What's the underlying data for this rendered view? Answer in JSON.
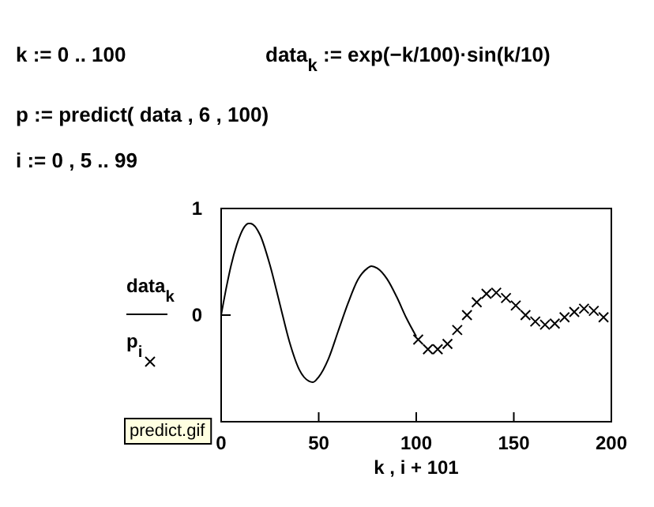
{
  "chart_data": {
    "type": "line",
    "xlabel": "k , i + 101",
    "xlim": [
      0,
      200
    ],
    "xticks": [
      0,
      50,
      100,
      150,
      200
    ],
    "ylim": [
      -1,
      1
    ],
    "yticks": [
      0,
      1
    ],
    "grid": false,
    "legend": "left",
    "annotations": [
      "k := 0 .. 100",
      "data$_{k}$ := exp(−k/100)·sin(k/10)",
      "p := predict( data , 6 , 100)",
      "i := 0 , 5 .. 99",
      "predict.gif"
    ],
    "series": [
      {
        "name": "data$_{k}$",
        "color": "#000000",
        "line_style": "solid",
        "marker": "none",
        "x": [
          0,
          3,
          5,
          8,
          10,
          12,
          14,
          15,
          20,
          25,
          30,
          35,
          40,
          45,
          47,
          50,
          55,
          60,
          65,
          70,
          75,
          77,
          80,
          85,
          90,
          95,
          100
        ],
        "values": [
          0,
          0.29,
          0.46,
          0.66,
          0.76,
          0.83,
          0.86,
          0.86,
          0.75,
          0.47,
          0.11,
          -0.25,
          -0.51,
          -0.62,
          -0.63,
          -0.58,
          -0.41,
          -0.15,
          0.11,
          0.33,
          0.44,
          0.46,
          0.44,
          0.34,
          0.17,
          -0.03,
          -0.2
        ]
      },
      {
        "name": "p$_{i}$",
        "type": "scatter",
        "color": "#000000",
        "marker": "cross",
        "x": [
          101,
          106,
          111,
          116,
          121,
          126,
          131,
          136,
          141,
          146,
          151,
          156,
          161,
          166,
          171,
          176,
          181,
          186,
          191,
          196
        ],
        "values": [
          -0.23,
          -0.32,
          -0.32,
          -0.27,
          -0.14,
          0.0,
          0.12,
          0.2,
          0.21,
          0.16,
          0.09,
          0.0,
          -0.06,
          -0.09,
          -0.08,
          -0.02,
          0.03,
          0.06,
          0.04,
          -0.02
        ]
      }
    ]
  }
}
